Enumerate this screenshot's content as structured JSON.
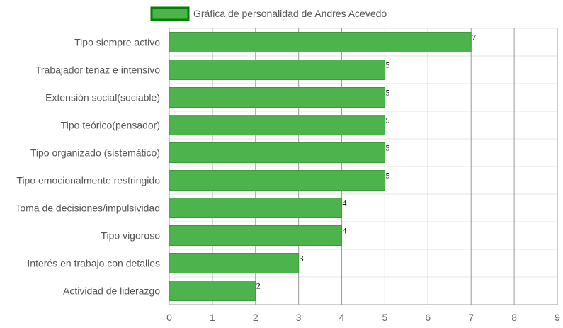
{
  "chart_data": {
    "type": "bar",
    "orientation": "horizontal",
    "categories": [
      "Tipo siempre activo",
      "Trabajador tenaz e intensivo",
      "Extensión social(sociable)",
      "Tipo teórico(pensador)",
      "Tipo organizado (sistemático)",
      "Tipo emocionalmente restringido",
      "Toma de decisiones/impulsividad",
      "Tipo vigoroso",
      "Interés en trabajo con detalles",
      "Actividad de liderazgo"
    ],
    "series": [
      {
        "name": "Gráfica de personalidad de Andres Acevedo",
        "values": [
          7,
          5,
          5,
          5,
          5,
          5,
          4,
          4,
          3,
          2
        ]
      }
    ],
    "xlim": [
      0,
      9
    ],
    "x_ticks": [
      "0",
      "1",
      "2",
      "3",
      "4",
      "5",
      "6",
      "7",
      "8",
      "9"
    ],
    "grid": true,
    "legend": "top",
    "colors": {
      "bar_fill": "#4db34d",
      "bar_border": "#3c9a3c",
      "legend_fill": "#4db34d",
      "legend_border": "#008000",
      "grid_major": "#999999",
      "grid_minor": "#e6e6e6",
      "axis": "#999999"
    }
  }
}
